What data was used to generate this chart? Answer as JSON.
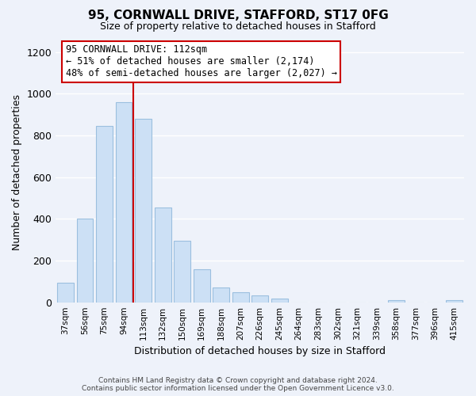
{
  "title": "95, CORNWALL DRIVE, STAFFORD, ST17 0FG",
  "subtitle": "Size of property relative to detached houses in Stafford",
  "xlabel": "Distribution of detached houses by size in Stafford",
  "ylabel": "Number of detached properties",
  "bar_labels": [
    "37sqm",
    "56sqm",
    "75sqm",
    "94sqm",
    "113sqm",
    "132sqm",
    "150sqm",
    "169sqm",
    "188sqm",
    "207sqm",
    "226sqm",
    "245sqm",
    "264sqm",
    "283sqm",
    "302sqm",
    "321sqm",
    "339sqm",
    "358sqm",
    "377sqm",
    "396sqm",
    "415sqm"
  ],
  "bar_values": [
    95,
    400,
    845,
    960,
    880,
    455,
    295,
    160,
    72,
    50,
    33,
    18,
    0,
    0,
    0,
    0,
    0,
    10,
    0,
    0,
    10
  ],
  "bar_color": "#cce0f5",
  "bar_edge_color": "#9bbfdf",
  "vline_color": "#cc0000",
  "annotation_line1": "95 CORNWALL DRIVE: 112sqm",
  "annotation_line2": "← 51% of detached houses are smaller (2,174)",
  "annotation_line3": "48% of semi-detached houses are larger (2,027) →",
  "annotation_box_color": "#ffffff",
  "annotation_box_edge": "#cc0000",
  "ylim": [
    0,
    1250
  ],
  "yticks": [
    0,
    200,
    400,
    600,
    800,
    1000,
    1200
  ],
  "footer_text": "Contains HM Land Registry data © Crown copyright and database right 2024.\nContains public sector information licensed under the Open Government Licence v3.0.",
  "bg_color": "#eef2fa",
  "grid_color": "#ffffff"
}
